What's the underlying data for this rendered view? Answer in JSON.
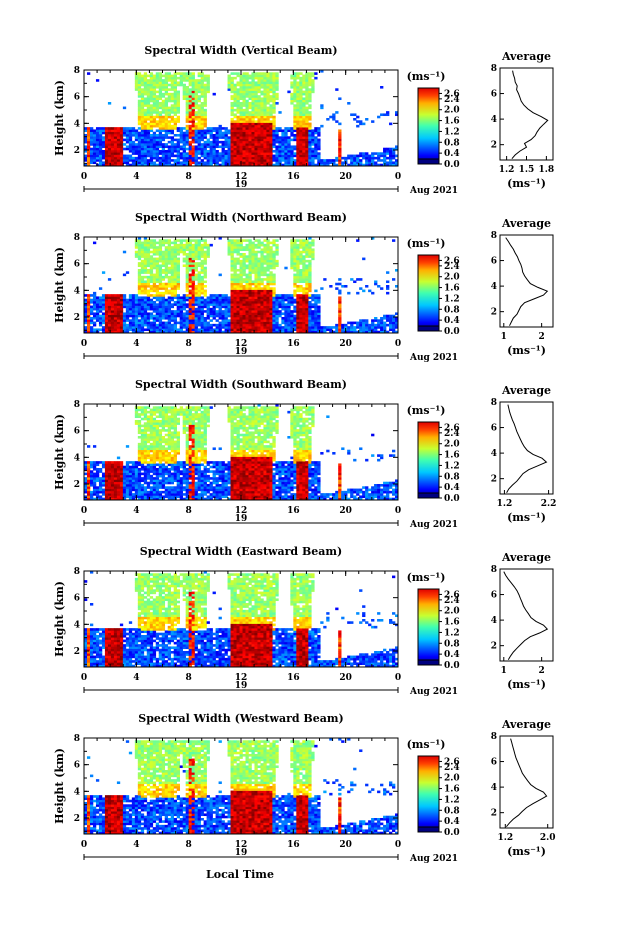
{
  "figure": {
    "xlabel": "Local Time",
    "colorbar_unit": "(ms⁻¹)",
    "avg_unit": "(ms⁻¹)",
    "day_label": "19",
    "month_label": "Aug 2021"
  },
  "chart_data": [
    {
      "type": "heatmap",
      "title": "Spectral Width (Vertical Beam)",
      "ylabel": "Height (km)",
      "x_ticks": [
        "0",
        "4",
        "8",
        "12",
        "16",
        "20",
        "0"
      ],
      "y_ticks": [
        "2",
        "4",
        "6",
        "8"
      ],
      "xlim": [
        0,
        24
      ],
      "ylim": [
        0.8,
        8.0
      ],
      "colorbar_ticks": [
        "2.6",
        "2.4",
        "2.0",
        "1.6",
        "1.2",
        "0.8",
        "0.4",
        "0.0"
      ],
      "colorbar_range": [
        0.0,
        2.8
      ],
      "avg_title": "Average",
      "avg_x_ticks": [
        "1.2",
        "1.5",
        "1.8"
      ],
      "avg_xlim": [
        1.1,
        1.9
      ],
      "avg_profile": {
        "height": [
          0.9,
          1.2,
          1.5,
          1.8,
          2.1,
          2.4,
          2.7,
          3.0,
          3.3,
          3.6,
          3.9,
          4.2,
          4.5,
          4.8,
          5.1,
          5.4,
          5.7,
          6.0,
          6.3,
          6.6,
          6.9,
          7.2,
          7.5,
          7.8
        ],
        "value": [
          1.28,
          1.33,
          1.4,
          1.5,
          1.47,
          1.57,
          1.63,
          1.66,
          1.7,
          1.76,
          1.82,
          1.72,
          1.6,
          1.52,
          1.46,
          1.42,
          1.4,
          1.38,
          1.35,
          1.36,
          1.33,
          1.32,
          1.3,
          1.29
        ]
      }
    },
    {
      "type": "heatmap",
      "title": "Spectral Width (Northward Beam)",
      "ylabel": "Height (km)",
      "x_ticks": [
        "0",
        "4",
        "8",
        "12",
        "16",
        "20",
        "0"
      ],
      "y_ticks": [
        "2",
        "4",
        "6",
        "8"
      ],
      "xlim": [
        0,
        24
      ],
      "ylim": [
        0.8,
        8.0
      ],
      "colorbar_ticks": [
        "2.6",
        "2.4",
        "2.0",
        "1.6",
        "1.2",
        "0.8",
        "0.4",
        "0.0"
      ],
      "colorbar_range": [
        0.0,
        2.8
      ],
      "avg_title": "Average",
      "avg_x_ticks": [
        "1",
        "2"
      ],
      "avg_xlim": [
        0.9,
        2.3
      ],
      "avg_profile": {
        "height": [
          0.9,
          1.2,
          1.5,
          1.8,
          2.1,
          2.4,
          2.7,
          3.0,
          3.3,
          3.6,
          3.9,
          4.2,
          4.5,
          4.8,
          5.1,
          5.4,
          5.7,
          6.0,
          6.3,
          6.6,
          6.9,
          7.2,
          7.5,
          7.8
        ],
        "value": [
          1.15,
          1.2,
          1.25,
          1.35,
          1.4,
          1.45,
          1.55,
          1.8,
          2.05,
          2.15,
          1.9,
          1.7,
          1.62,
          1.55,
          1.5,
          1.48,
          1.45,
          1.4,
          1.36,
          1.3,
          1.25,
          1.18,
          1.12,
          1.05
        ]
      }
    },
    {
      "type": "heatmap",
      "title": "Spectral Width (Southward Beam)",
      "ylabel": "Height (km)",
      "x_ticks": [
        "0",
        "4",
        "8",
        "12",
        "16",
        "20",
        "0"
      ],
      "y_ticks": [
        "2",
        "4",
        "6",
        "8"
      ],
      "xlim": [
        0,
        24
      ],
      "ylim": [
        0.8,
        8.0
      ],
      "colorbar_ticks": [
        "2.6",
        "2.4",
        "2.0",
        "1.6",
        "1.2",
        "0.8",
        "0.4",
        "0.0"
      ],
      "colorbar_range": [
        0.0,
        2.8
      ],
      "avg_title": "Average",
      "avg_x_ticks": [
        "1.2",
        "2.2"
      ],
      "avg_xlim": [
        1.1,
        2.3
      ],
      "avg_profile": {
        "height": [
          0.9,
          1.2,
          1.5,
          1.8,
          2.1,
          2.4,
          2.7,
          3.0,
          3.3,
          3.6,
          3.9,
          4.2,
          4.5,
          4.8,
          5.1,
          5.4,
          5.7,
          6.0,
          6.3,
          6.6,
          6.9,
          7.2,
          7.5,
          7.8
        ],
        "value": [
          1.25,
          1.3,
          1.38,
          1.48,
          1.55,
          1.62,
          1.75,
          1.95,
          2.15,
          2.05,
          1.85,
          1.72,
          1.65,
          1.6,
          1.56,
          1.52,
          1.48,
          1.45,
          1.42,
          1.38,
          1.35,
          1.32,
          1.3,
          1.28
        ]
      }
    },
    {
      "type": "heatmap",
      "title": "Spectral Width (Eastward Beam)",
      "ylabel": "Height (km)",
      "x_ticks": [
        "0",
        "4",
        "8",
        "12",
        "16",
        "20",
        "0"
      ],
      "y_ticks": [
        "2",
        "4",
        "6",
        "8"
      ],
      "xlim": [
        0,
        24
      ],
      "ylim": [
        0.8,
        8.0
      ],
      "colorbar_ticks": [
        "2.6",
        "2.4",
        "2.0",
        "1.6",
        "1.2",
        "0.8",
        "0.4",
        "0.0"
      ],
      "colorbar_range": [
        0.0,
        2.8
      ],
      "avg_title": "Average",
      "avg_x_ticks": [
        "1",
        "2"
      ],
      "avg_xlim": [
        0.9,
        2.3
      ],
      "avg_profile": {
        "height": [
          0.9,
          1.2,
          1.5,
          1.8,
          2.1,
          2.4,
          2.7,
          3.0,
          3.3,
          3.6,
          3.9,
          4.2,
          4.5,
          4.8,
          5.1,
          5.4,
          5.7,
          6.0,
          6.3,
          6.6,
          6.9,
          7.2,
          7.5,
          7.8
        ],
        "value": [
          1.12,
          1.18,
          1.25,
          1.35,
          1.45,
          1.55,
          1.7,
          1.95,
          2.15,
          2.05,
          1.85,
          1.72,
          1.65,
          1.58,
          1.52,
          1.48,
          1.44,
          1.4,
          1.35,
          1.28,
          1.2,
          1.12,
          1.05,
          1.0
        ]
      }
    },
    {
      "type": "heatmap",
      "title": "Spectral Width (Westward Beam)",
      "ylabel": "Height (km)",
      "x_ticks": [
        "0",
        "4",
        "8",
        "12",
        "16",
        "20",
        "0"
      ],
      "y_ticks": [
        "2",
        "4",
        "6",
        "8"
      ],
      "xlim": [
        0,
        24
      ],
      "ylim": [
        0.8,
        8.0
      ],
      "colorbar_ticks": [
        "2.6",
        "2.4",
        "2.0",
        "1.6",
        "1.2",
        "0.8",
        "0.4",
        "0.0"
      ],
      "colorbar_range": [
        0.0,
        2.8
      ],
      "avg_title": "Average",
      "avg_x_ticks": [
        "1.2",
        "2.0"
      ],
      "avg_xlim": [
        1.1,
        2.1
      ],
      "avg_profile": {
        "height": [
          0.9,
          1.2,
          1.5,
          1.8,
          2.1,
          2.4,
          2.7,
          3.0,
          3.3,
          3.6,
          3.9,
          4.2,
          4.5,
          4.8,
          5.1,
          5.4,
          5.7,
          6.0,
          6.3,
          6.6,
          6.9,
          7.2,
          7.5,
          7.8
        ],
        "value": [
          1.22,
          1.28,
          1.35,
          1.45,
          1.52,
          1.6,
          1.72,
          1.85,
          1.98,
          1.92,
          1.78,
          1.68,
          1.62,
          1.57,
          1.52,
          1.49,
          1.46,
          1.43,
          1.4,
          1.38,
          1.36,
          1.34,
          1.32,
          1.3
        ]
      }
    }
  ]
}
